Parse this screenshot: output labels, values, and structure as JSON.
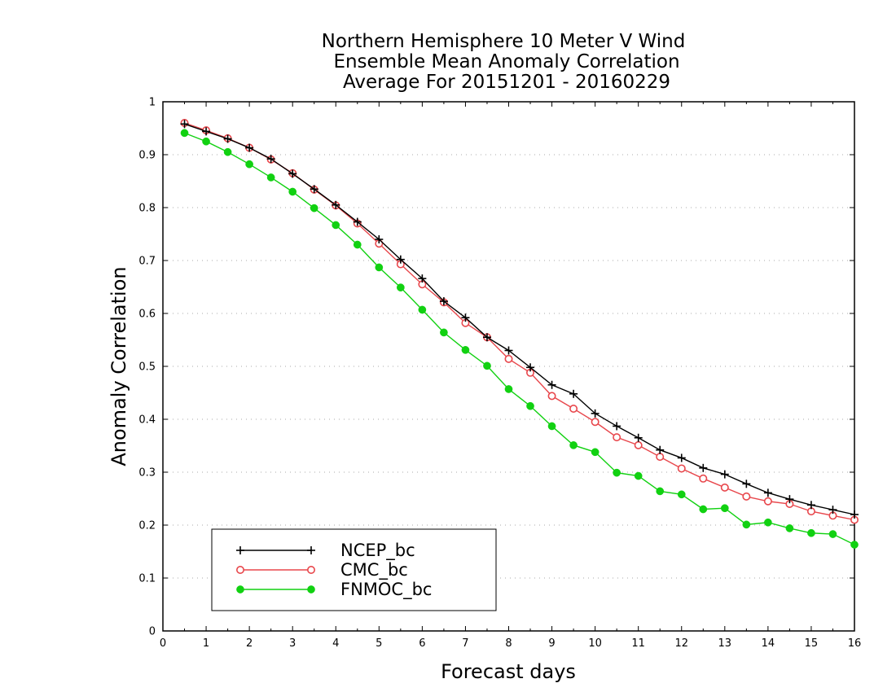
{
  "chart_data": {
    "type": "line",
    "title": [
      "Northern Hemisphere 10 Meter V Wind",
      "Ensemble Mean Anomaly Correlation",
      "Average For 20151201 - 20160229"
    ],
    "xlabel": "Forecast days",
    "ylabel": "Anomaly Correlation",
    "xlim": [
      0,
      16
    ],
    "ylim": [
      0,
      1
    ],
    "xticks": [
      "0",
      "1",
      "2",
      "3",
      "4",
      "5",
      "6",
      "7",
      "8",
      "9",
      "10",
      "11",
      "12",
      "13",
      "14",
      "15",
      "16"
    ],
    "yticks": [
      "0",
      "0.1",
      "0.2",
      "0.3",
      "0.4",
      "0.5",
      "0.6",
      "0.7",
      "0.8",
      "0.9",
      "1"
    ],
    "grid": true,
    "legend_position": "bottom-left",
    "x": [
      0.5,
      1,
      1.5,
      2,
      2.5,
      3,
      3.5,
      4,
      4.5,
      5,
      5.5,
      6,
      6.5,
      7,
      7.5,
      8,
      8.5,
      9,
      9.5,
      10,
      10.5,
      11,
      11.5,
      12,
      12.5,
      13,
      13.5,
      14,
      14.5,
      15,
      15.5,
      16
    ],
    "series": [
      {
        "name": "NCEP_bc",
        "color": "#000000",
        "marker": "plus",
        "values": [
          0.958,
          0.944,
          0.93,
          0.913,
          0.892,
          0.864,
          0.835,
          0.805,
          0.773,
          0.74,
          0.702,
          0.666,
          0.623,
          0.592,
          0.555,
          0.53,
          0.498,
          0.465,
          0.448,
          0.411,
          0.387,
          0.365,
          0.342,
          0.327,
          0.308,
          0.296,
          0.278,
          0.261,
          0.249,
          0.238,
          0.229,
          0.22
        ]
      },
      {
        "name": "CMC_bc",
        "color": "#e8474c",
        "marker": "open-circle",
        "values": [
          0.96,
          0.946,
          0.931,
          0.913,
          0.891,
          0.865,
          0.834,
          0.804,
          0.77,
          0.732,
          0.693,
          0.655,
          0.621,
          0.582,
          0.555,
          0.514,
          0.488,
          0.444,
          0.42,
          0.395,
          0.366,
          0.351,
          0.329,
          0.307,
          0.288,
          0.271,
          0.254,
          0.245,
          0.24,
          0.226,
          0.218,
          0.21
        ]
      },
      {
        "name": "FNMOC_bc",
        "color": "#11d111",
        "marker": "filled-circle",
        "values": [
          0.941,
          0.925,
          0.905,
          0.882,
          0.857,
          0.83,
          0.799,
          0.767,
          0.73,
          0.687,
          0.649,
          0.607,
          0.564,
          0.531,
          0.501,
          0.457,
          0.425,
          0.387,
          0.351,
          0.338,
          0.299,
          0.293,
          0.264,
          0.258,
          0.23,
          0.232,
          0.201,
          0.205,
          0.194,
          0.185,
          0.183,
          0.163
        ]
      }
    ]
  }
}
